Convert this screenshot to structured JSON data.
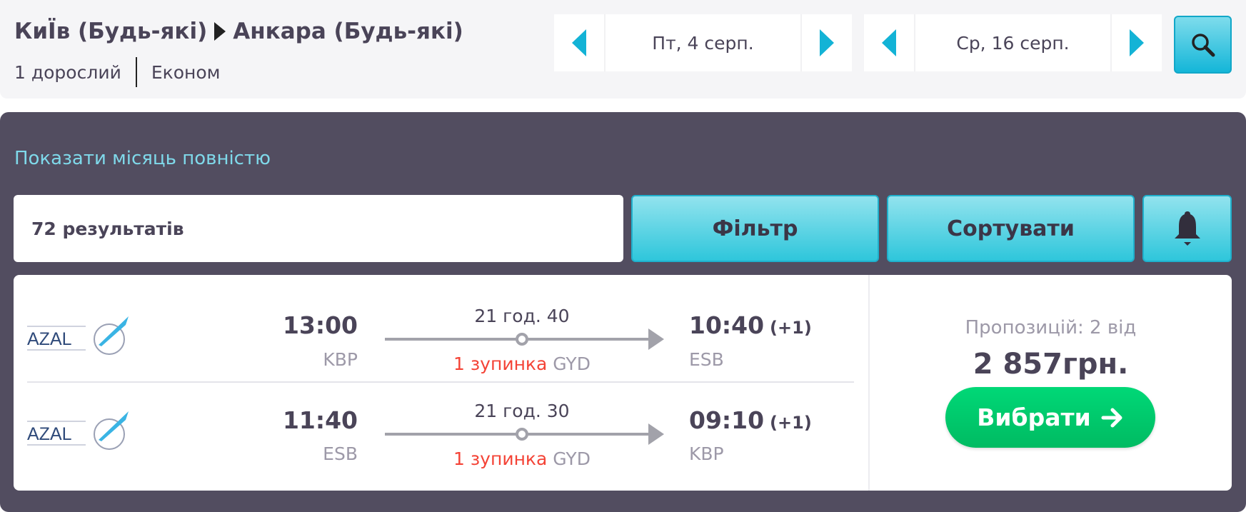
{
  "header": {
    "origin": "КиЇв (Будь-які)",
    "destination": "Анкара (Будь-які)",
    "passengers": "1 дорослий",
    "cabin": "Економ",
    "depart_date": "Пт, 4 серп.",
    "return_date": "Ср, 16 серп."
  },
  "toolbar": {
    "month_link": "Показати місяць повністю",
    "results_count": "72 результатів",
    "filter_label": "Фільтр",
    "sort_label": "Сортувати"
  },
  "offer": {
    "airline_logo_text": "AZAL",
    "flights": [
      {
        "dep_time": "13:00",
        "dep_airport": "KBP",
        "duration": "21 год. 40",
        "stops": "1 зупинка",
        "stop_airport": "GYD",
        "arr_time": "10:40",
        "day_offset": "(+1)",
        "arr_airport": "ESB"
      },
      {
        "dep_time": "11:40",
        "dep_airport": "ESB",
        "duration": "21 год. 30",
        "stops": "1 зупинка",
        "stop_airport": "GYD",
        "arr_time": "09:10",
        "day_offset": "(+1)",
        "arr_airport": "KBP"
      }
    ],
    "offers_label": "Пропозицій: 2 від",
    "price": "2 857грн.",
    "choose_label": "Вибрати"
  },
  "colors": {
    "accent": "#13b3d6",
    "panel": "#524d60",
    "green": "#00c96b",
    "stop_red": "#f44336"
  }
}
